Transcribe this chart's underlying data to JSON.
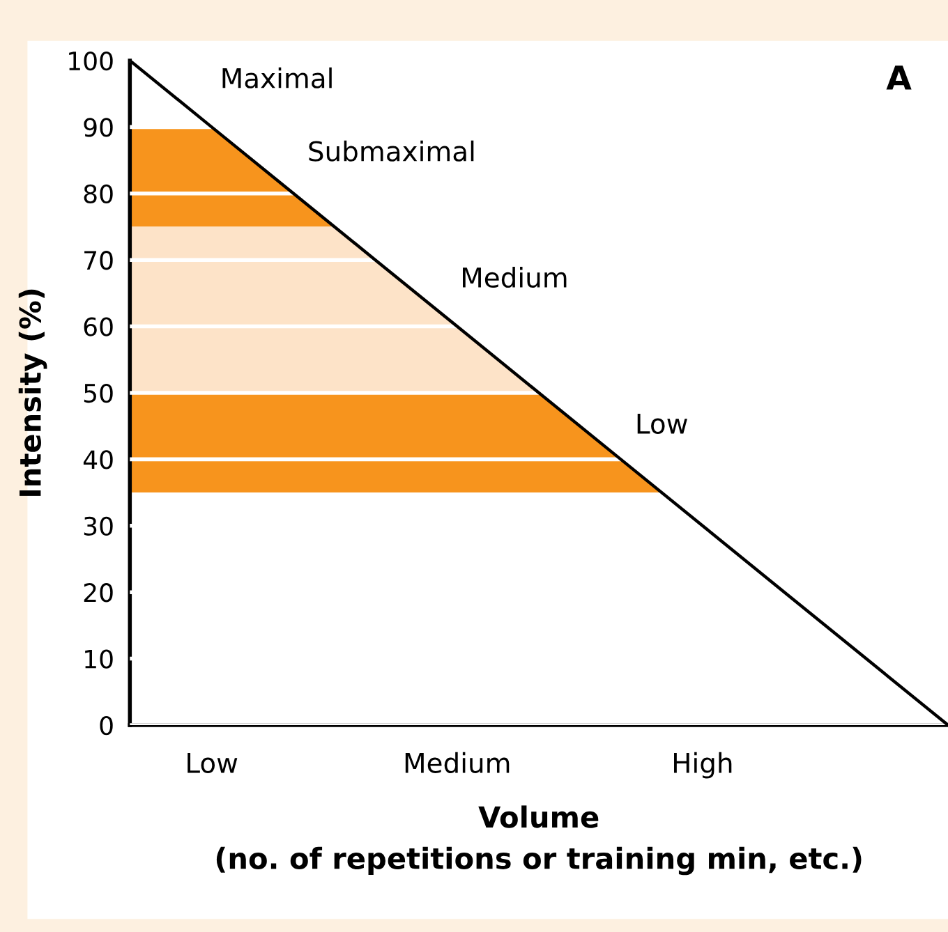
{
  "chart_data": {
    "type": "line",
    "xlabel": "Volume\n(no. of repetitions or training min, etc.)",
    "ylabel": "Intensity (%)",
    "categories": [
      null,
      "Low",
      null,
      null,
      "Medium",
      null,
      null,
      "High",
      null,
      null,
      null
    ],
    "series": [
      {
        "color": "#000000",
        "values": [
          100,
          90,
          80,
          70,
          60,
          50,
          40,
          30,
          20,
          10,
          0
        ]
      }
    ],
    "ylim": [
      0,
      100
    ],
    "yticks": [
      0,
      10,
      20,
      30,
      40,
      50,
      60,
      70,
      80,
      90,
      100
    ],
    "bands": [
      {
        "axis": "y",
        "from": 75,
        "to": 90,
        "color": "#f7941d"
      },
      {
        "axis": "y",
        "from": 50,
        "to": 75,
        "color": "#fde3c8"
      },
      {
        "axis": "y",
        "from": 35,
        "to": 50,
        "color": "#f7941d"
      }
    ],
    "annotations": [
      "Maximal",
      "Submaximal",
      "Medium",
      "Low",
      "A"
    ],
    "grid": "y",
    "legend": false,
    "marker": "none",
    "line_style": "solid"
  }
}
